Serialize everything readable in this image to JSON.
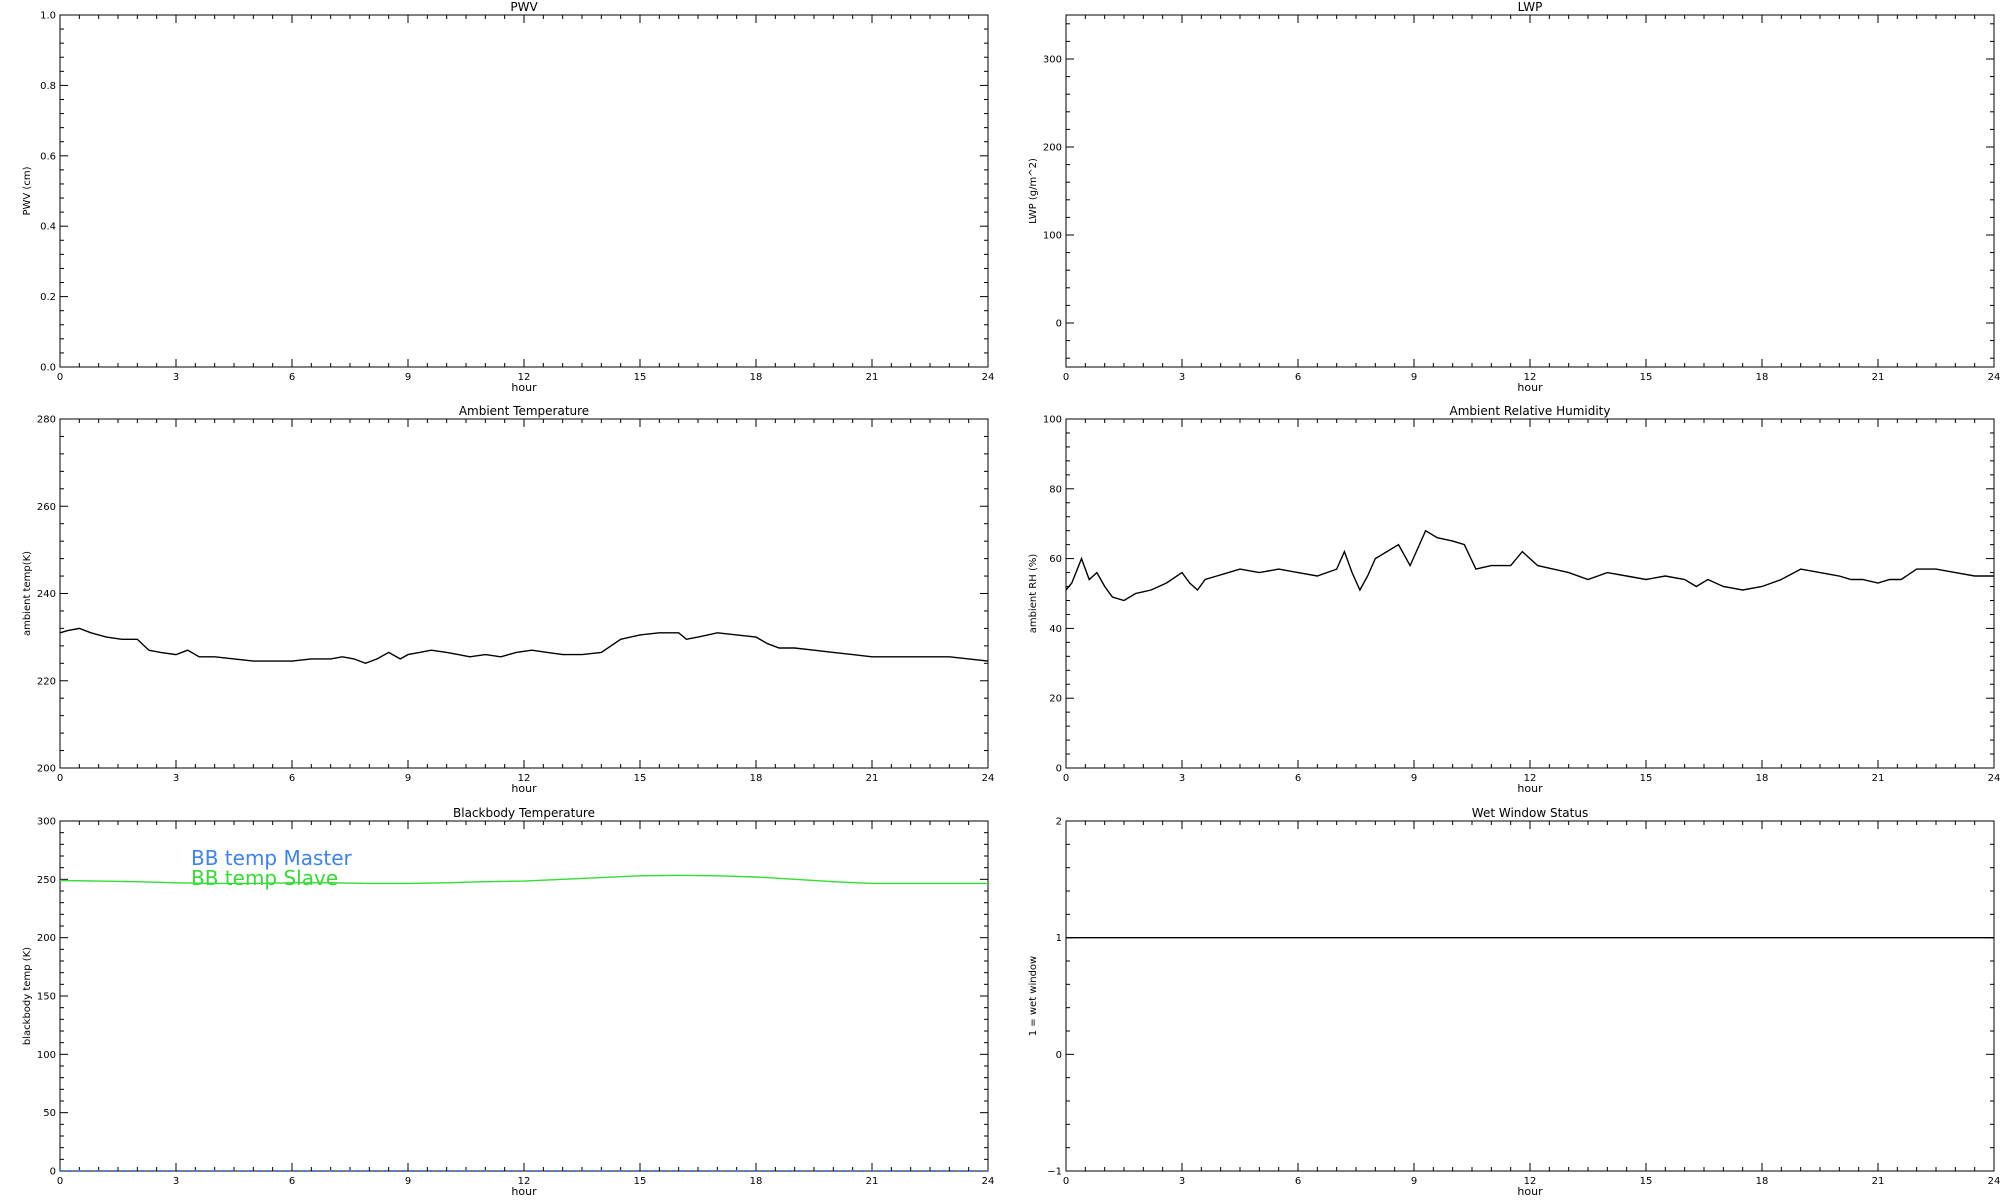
{
  "chart_data": [
    {
      "type": "line",
      "title": "PWV",
      "xlabel": "hour",
      "ylabel": "PWV (cm)",
      "xlim": [
        0,
        24
      ],
      "ylim": [
        0,
        1
      ],
      "xticks": [
        0,
        3,
        6,
        9,
        12,
        15,
        18,
        21,
        24
      ],
      "yticks": [
        0.0,
        0.2,
        0.4,
        0.6,
        0.8,
        1.0
      ],
      "ytick_labels": [
        "0.0",
        "0.2",
        "0.4",
        "0.6",
        "0.8",
        "1.0"
      ],
      "series": []
    },
    {
      "type": "line",
      "title": "LWP",
      "xlabel": "hour",
      "ylabel": "LWP (g/m^2)",
      "xlim": [
        0,
        24
      ],
      "ylim": [
        -50,
        350
      ],
      "xticks": [
        0,
        3,
        6,
        9,
        12,
        15,
        18,
        21,
        24
      ],
      "yticks": [
        0,
        100,
        200,
        300
      ],
      "ytick_labels": [
        "0",
        "100",
        "200",
        "300"
      ],
      "series": []
    },
    {
      "type": "line",
      "title": "Ambient Temperature",
      "xlabel": "hour",
      "ylabel": "ambient temp(K)",
      "xlim": [
        0,
        24
      ],
      "ylim": [
        200,
        280
      ],
      "xticks": [
        0,
        3,
        6,
        9,
        12,
        15,
        18,
        21,
        24
      ],
      "yticks": [
        200,
        220,
        240,
        260,
        280
      ],
      "ytick_labels": [
        "200",
        "220",
        "240",
        "260",
        "280"
      ],
      "series": [
        {
          "color": "#000000",
          "x": [
            0,
            0.2,
            0.5,
            0.8,
            1.2,
            1.6,
            2.0,
            2.3,
            2.6,
            3.0,
            3.3,
            3.6,
            4.0,
            4.5,
            5.0,
            5.5,
            6.0,
            6.5,
            7.0,
            7.3,
            7.6,
            7.9,
            8.2,
            8.5,
            8.8,
            9.0,
            9.3,
            9.6,
            10.0,
            10.3,
            10.6,
            11.0,
            11.4,
            11.8,
            12.2,
            12.6,
            13.0,
            13.5,
            14.0,
            14.5,
            15.0,
            15.5,
            16.0,
            16.2,
            16.5,
            17.0,
            17.5,
            18.0,
            18.3,
            18.6,
            19.0,
            19.5,
            20.0,
            20.5,
            21.0,
            21.5,
            22.0,
            22.5,
            23.0,
            23.5,
            24.0
          ],
          "y": [
            231,
            231.5,
            232,
            231,
            230,
            229.5,
            229.5,
            227,
            226.5,
            226,
            227,
            225.5,
            225.5,
            225,
            224.5,
            224.5,
            224.5,
            225,
            225,
            225.5,
            225,
            224,
            225,
            226.5,
            225,
            226,
            226.5,
            227,
            226.5,
            226,
            225.5,
            226,
            225.5,
            226.5,
            227,
            226.5,
            226,
            226,
            226.5,
            229.5,
            230.5,
            231,
            231,
            229.5,
            230,
            231,
            230.5,
            230,
            228.5,
            227.5,
            227.5,
            227,
            226.5,
            226,
            225.5,
            225.5,
            225.5,
            225.5,
            225.5,
            225,
            224.5
          ]
        }
      ]
    },
    {
      "type": "line",
      "title": "Ambient Relative Humidity",
      "xlabel": "hour",
      "ylabel": "ambient RH (%)",
      "xlim": [
        0,
        24
      ],
      "ylim": [
        0,
        100
      ],
      "xticks": [
        0,
        3,
        6,
        9,
        12,
        15,
        18,
        21,
        24
      ],
      "yticks": [
        0,
        20,
        40,
        60,
        80,
        100
      ],
      "ytick_labels": [
        "0",
        "20",
        "40",
        "60",
        "80",
        "100"
      ],
      "series": [
        {
          "color": "#000000",
          "x": [
            0,
            0.15,
            0.4,
            0.6,
            0.8,
            1.0,
            1.2,
            1.5,
            1.8,
            2.2,
            2.6,
            3.0,
            3.2,
            3.4,
            3.6,
            3.9,
            4.2,
            4.5,
            5.0,
            5.5,
            6.0,
            6.5,
            7.0,
            7.2,
            7.4,
            7.6,
            7.8,
            8.0,
            8.3,
            8.6,
            8.9,
            9.1,
            9.3,
            9.6,
            10.0,
            10.3,
            10.6,
            11.0,
            11.5,
            11.8,
            12.2,
            12.6,
            13.0,
            13.5,
            14.0,
            14.5,
            15.0,
            15.5,
            16.0,
            16.3,
            16.6,
            17.0,
            17.5,
            18.0,
            18.5,
            19.0,
            19.5,
            20.0,
            20.3,
            20.6,
            21.0,
            21.3,
            21.6,
            22.0,
            22.5,
            23.0,
            23.5,
            24.0
          ],
          "y": [
            51,
            53,
            60,
            54,
            56,
            52,
            49,
            48,
            50,
            51,
            53,
            56,
            53,
            51,
            54,
            55,
            56,
            57,
            56,
            57,
            56,
            55,
            57,
            62,
            56,
            51,
            55,
            60,
            62,
            64,
            58,
            63,
            68,
            66,
            65,
            64,
            57,
            58,
            58,
            62,
            58,
            57,
            56,
            54,
            56,
            55,
            54,
            55,
            54,
            52,
            54,
            52,
            51,
            52,
            54,
            57,
            56,
            55,
            54,
            54,
            53,
            54,
            54,
            57,
            57,
            56,
            55,
            55
          ]
        }
      ]
    },
    {
      "type": "line",
      "title": "Blackbody Temperature",
      "xlabel": "hour",
      "ylabel": "blackbody temp (K)",
      "xlim": [
        0,
        24
      ],
      "ylim": [
        0,
        300
      ],
      "xticks": [
        0,
        3,
        6,
        9,
        12,
        15,
        18,
        21,
        24
      ],
      "yticks": [
        0,
        50,
        100,
        150,
        200,
        250,
        300
      ],
      "ytick_labels": [
        "0",
        "50",
        "100",
        "150",
        "200",
        "250",
        "300"
      ],
      "series": [
        {
          "name": "BB temp Master",
          "color": "#3b82f6",
          "style": "dotted",
          "x": [
            0,
            24
          ],
          "y": [
            0,
            0
          ]
        },
        {
          "name": "BB temp Slave",
          "color": "#33dd33",
          "x": [
            0,
            1,
            2,
            3,
            4,
            5,
            6,
            7,
            8,
            9,
            10,
            11,
            12,
            13,
            14,
            15,
            16,
            17,
            18,
            19,
            20,
            21,
            22,
            23,
            24
          ],
          "y": [
            249,
            248.5,
            248,
            247,
            246.5,
            246.5,
            247,
            247,
            246.5,
            246.5,
            247,
            248,
            248.5,
            250,
            251.5,
            253,
            253.5,
            253,
            252,
            250,
            248,
            246.5,
            246.5,
            246.5,
            246.5
          ]
        }
      ]
    },
    {
      "type": "line",
      "title": "Wet Window Status",
      "xlabel": "hour",
      "ylabel": "1 = wet window",
      "xlim": [
        0,
        24
      ],
      "ylim": [
        -1,
        2
      ],
      "xticks": [
        0,
        3,
        6,
        9,
        12,
        15,
        18,
        21,
        24
      ],
      "yticks": [
        -1,
        0,
        1,
        2
      ],
      "ytick_labels": [
        "−1",
        "0",
        "1",
        "2"
      ],
      "series": [
        {
          "color": "#000000",
          "x": [
            0,
            24
          ],
          "y": [
            1,
            1
          ]
        }
      ]
    }
  ]
}
